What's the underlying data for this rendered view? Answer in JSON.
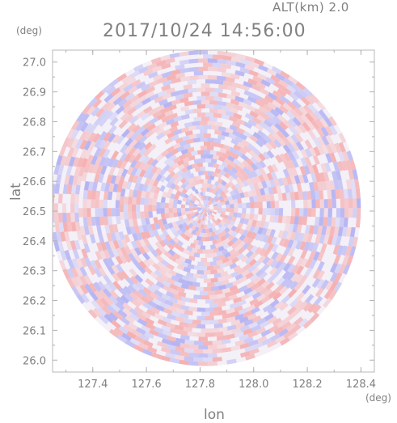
{
  "header": {
    "altitude_label": "ALT(km) 2.0",
    "datetime": "2017/10/24 14:56:00"
  },
  "chart_data": {
    "type": "heatmap",
    "xlabel": "lon",
    "ylabel": "lat",
    "x_unit": "(deg)",
    "y_unit": "(deg)",
    "xlim": [
      127.25,
      128.45
    ],
    "ylim": [
      25.96,
      27.04
    ],
    "x_ticks": [
      127.4,
      127.6,
      127.8,
      128.0,
      128.2,
      128.4
    ],
    "y_ticks": [
      26.0,
      26.1,
      26.2,
      26.3,
      26.4,
      26.5,
      26.6,
      26.7,
      26.8,
      26.9,
      27.0
    ],
    "x_tick_labels": [
      "127.4",
      "127.6",
      "127.8",
      "128.0",
      "128.2",
      "128.4"
    ],
    "y_tick_labels": [
      "26.0",
      "26.1",
      "26.2",
      "26.3",
      "26.4",
      "26.5",
      "26.6",
      "26.7",
      "26.8",
      "26.9",
      "27.0"
    ],
    "radar_center": [
      127.82,
      26.51
    ],
    "radar_radius_lon": 0.58,
    "radar_radius_lat": 0.53,
    "colors": {
      "positive": "#f5a5a5",
      "negative": "#a9a9f2",
      "neutral": "#ffffff",
      "axis": "#b0b0b0"
    }
  }
}
